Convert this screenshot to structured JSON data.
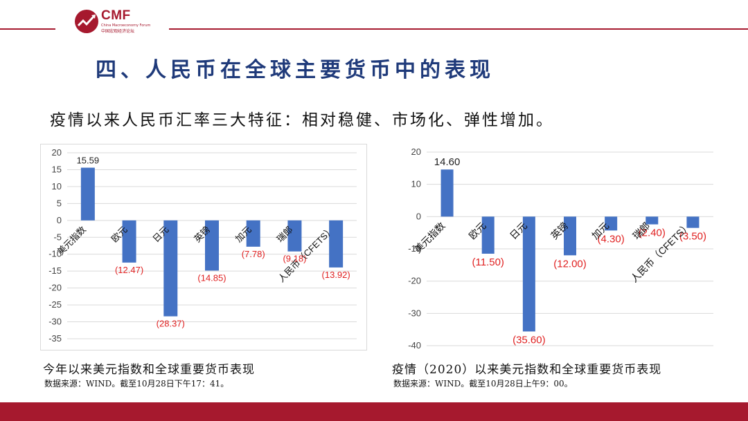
{
  "header": {
    "logo_text": "CMF",
    "logo_subtitle": "China Macroeconomy Forum",
    "logo_subtitle_cn": "中国宏观经济论坛",
    "brand_color": "#a6192e"
  },
  "page_title": "四、人民币在全球主要货币中的表现",
  "subtitle": "疫情以来人民币汇率三大特征：相对稳健、市场化、弹性增加。",
  "bar_color": "#4472c4",
  "negative_label_color": "#e02020",
  "chart_data": [
    {
      "type": "bar",
      "categories": [
        "美元指数",
        "欧元",
        "日元",
        "英镑",
        "加元",
        "瑞郎",
        "人民币（CFETS）"
      ],
      "values": [
        15.59,
        -12.47,
        -28.37,
        -14.85,
        -7.78,
        -9.18,
        -13.92
      ],
      "data_labels": [
        "15.59",
        "(12.47)",
        "(28.37)",
        "(14.85)",
        "(7.78)",
        "(9.18)",
        "(13.92)"
      ],
      "ylim": [
        -35,
        20
      ],
      "yticks": [
        20,
        15,
        10,
        5,
        0,
        -5,
        -10,
        -15,
        -20,
        -25,
        -30,
        -35
      ],
      "grid": true,
      "caption": "今年以来美元指数和全球重要货币表现",
      "source": "数据来源：WIND。截至10月28日下午17：41。"
    },
    {
      "type": "bar",
      "categories": [
        "美元指数",
        "欧元",
        "日元",
        "英镑",
        "加元",
        "瑞郎",
        "人民币（CFETS）"
      ],
      "values": [
        14.6,
        -11.5,
        -35.6,
        -12.0,
        -4.3,
        -2.4,
        -3.5
      ],
      "data_labels": [
        "14.60",
        "(11.50)",
        "(35.60)",
        "(12.00)",
        "(4.30)",
        "(2.40)",
        "(3.50)"
      ],
      "ylim": [
        -40,
        20
      ],
      "yticks": [
        20,
        10,
        0,
        -10,
        -20,
        -30,
        -40
      ],
      "grid": true,
      "caption": "疫情（2020）以来美元指数和全球重要货币表现",
      "source": "数据来源：WIND。截至10月28日上午9：00。"
    }
  ]
}
